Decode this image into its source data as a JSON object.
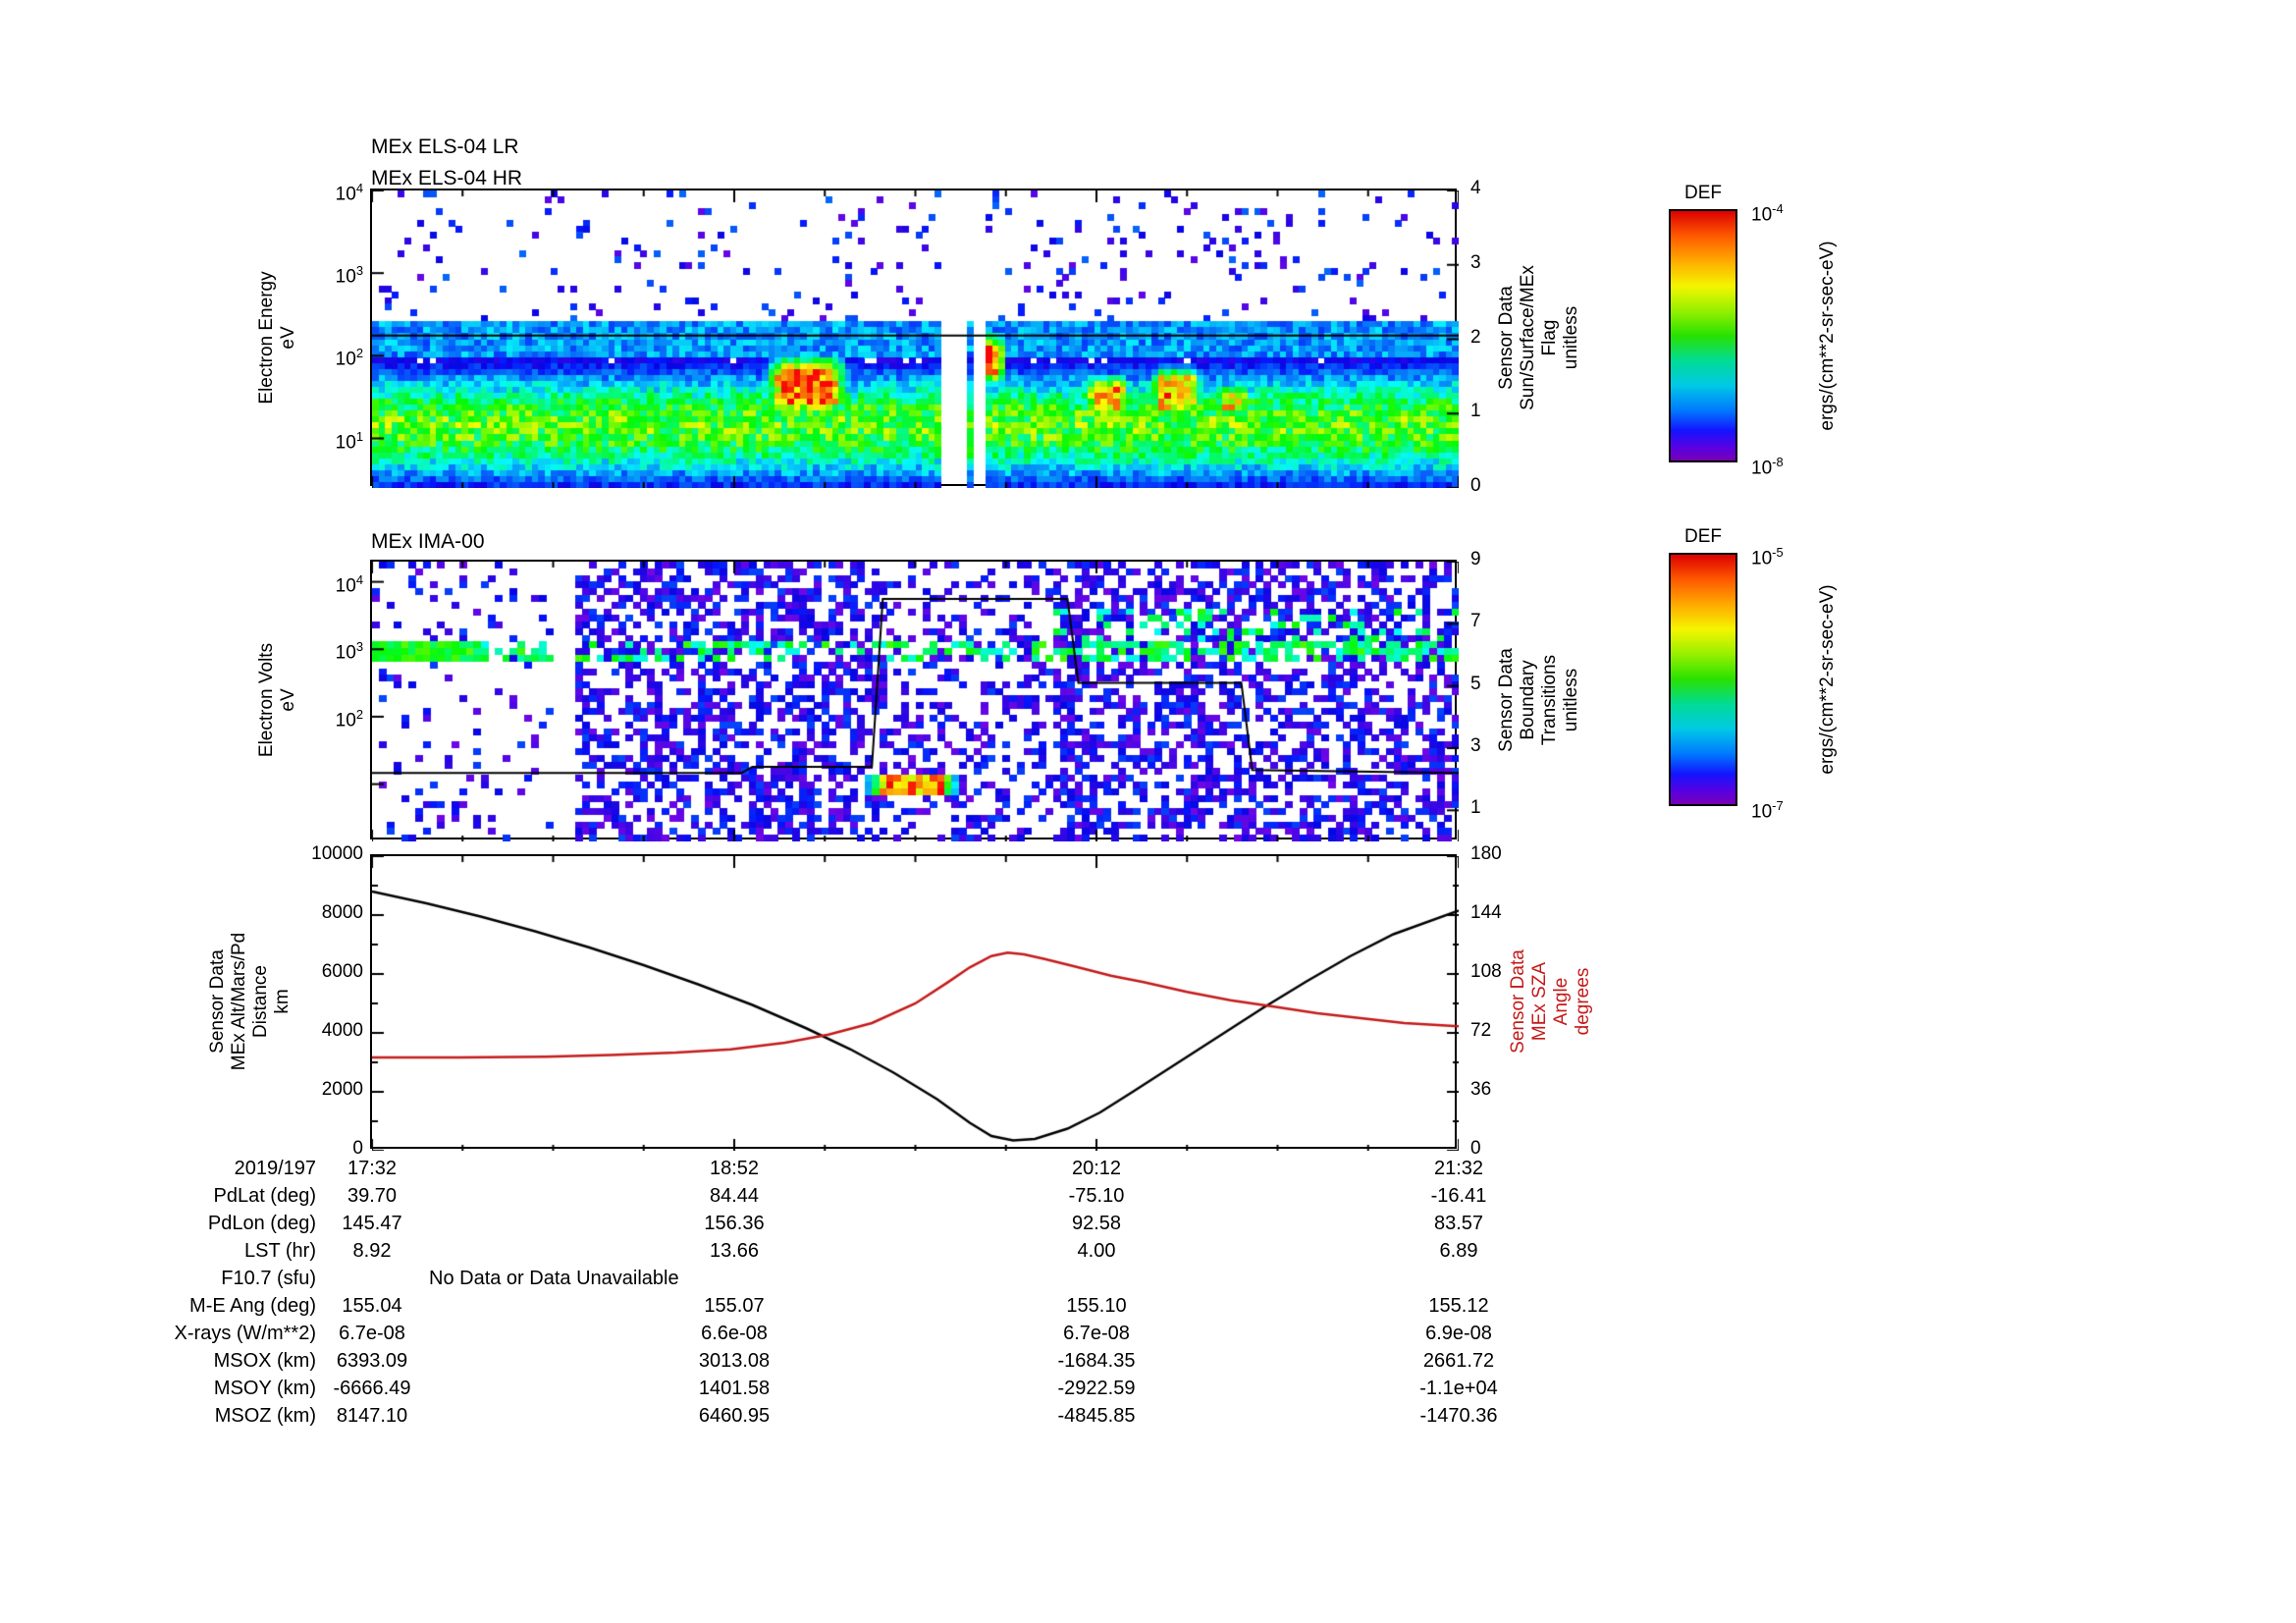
{
  "chart_data": [
    {
      "id": "els",
      "type": "heatmap",
      "titles": [
        "MEx ELS-04 LR",
        "MEx ELS-04 HR"
      ],
      "ylabel_lines": [
        "Electron Energy",
        "eV"
      ],
      "y_scale": "log",
      "y_log_range": [
        0.4,
        4.0
      ],
      "y_ticks": [
        {
          "base": "10",
          "exp": "4"
        },
        {
          "base": "10",
          "exp": "3"
        },
        {
          "base": "10",
          "exp": "2"
        },
        {
          "base": "10",
          "exp": "1"
        }
      ],
      "x_range": [
        "17:32",
        "21:32"
      ],
      "right_axis": {
        "label_lines": [
          "Sensor Data",
          "Sun/Surface/MEx",
          "Flag",
          "unitless"
        ],
        "range": [
          0,
          4
        ],
        "ticks": [
          "4",
          "3",
          "2",
          "1",
          "0"
        ]
      },
      "flag_line": [
        [
          0,
          2.05
        ],
        [
          1,
          2.05
        ]
      ],
      "features": {
        "band": {
          "center": 1.15,
          "sigma": 0.45,
          "peak": 0.62
        },
        "upper_band": {
          "log0": 2.0,
          "log1": 2.4,
          "v": 0.27
        },
        "blobs": [
          {
            "x0": 0.355,
            "x1": 0.445,
            "log0": 1.15,
            "log1": 2.1,
            "v": 0.97
          },
          {
            "x0": 0.559,
            "x1": 0.584,
            "log0": 1.55,
            "log1": 2.35,
            "v": 0.95
          },
          {
            "x0": 0.652,
            "x1": 0.702,
            "log0": 1.1,
            "log1": 1.85,
            "v": 0.86
          },
          {
            "x0": 0.712,
            "x1": 0.768,
            "log0": 1.15,
            "log1": 1.95,
            "v": 0.9
          },
          {
            "x0": 0.775,
            "x1": 0.81,
            "log0": 1.2,
            "log1": 1.7,
            "v": 0.8
          }
        ],
        "gaps": [
          [
            0.521,
            0.547
          ],
          [
            0.5555,
            0.5655
          ]
        ]
      },
      "colorbar": {
        "title": "DEF",
        "top_tick": {
          "base": "10",
          "exp": "-4"
        },
        "bottom_tick": {
          "base": "10",
          "exp": "-8"
        },
        "units": "ergs/(cm**2-sr-sec-eV)"
      }
    },
    {
      "id": "ima",
      "type": "heatmap",
      "titles": [
        "MEx IMA-00"
      ],
      "ylabel_lines": [
        "Electron Volts",
        "eV"
      ],
      "y_scale": "log",
      "y_log_range": [
        0.15,
        4.3
      ],
      "y_ticks": [
        {
          "base": "10",
          "exp": "4"
        },
        {
          "base": "10",
          "exp": "3"
        },
        {
          "base": "10",
          "exp": "2"
        }
      ],
      "x_range": [
        "17:32",
        "21:32"
      ],
      "right_axis": {
        "label_lines": [
          "Sensor Data",
          "Boundary",
          "Transitions",
          "unitless"
        ],
        "range": [
          0,
          9
        ],
        "ticks": [
          "9",
          "7",
          "5",
          "3",
          "1"
        ]
      },
      "boundary_line": [
        [
          0,
          2.2
        ],
        [
          0.34,
          2.2
        ],
        [
          0.35,
          2.4
        ],
        [
          0.46,
          2.4
        ],
        [
          0.47,
          7.8
        ],
        [
          0.64,
          7.8
        ],
        [
          0.65,
          5.1
        ],
        [
          0.8,
          5.1
        ],
        [
          0.81,
          2.3
        ],
        [
          1.0,
          2.2
        ]
      ],
      "features": {
        "band_log": 3.0,
        "red_streak": {
          "x0": 0.45,
          "x1": 0.545,
          "log0": 0.85,
          "log1": 1.15,
          "v": 0.93
        },
        "sparse_regions": [
          [
            0.0,
            0.168
          ],
          [
            0.47,
            0.63
          ]
        ],
        "gaps": [
          [
            0.168,
            0.185
          ]
        ]
      },
      "colorbar": {
        "title": "DEF",
        "top_tick": {
          "base": "10",
          "exp": "-5"
        },
        "bottom_tick": {
          "base": "10",
          "exp": "-7"
        },
        "units": "ergs/(cm**2-sr-sec-eV)"
      }
    },
    {
      "id": "lines",
      "type": "line",
      "left_axis": {
        "label_lines": [
          "Sensor Data",
          "MEx Alt/Mars/Pd",
          "Distance",
          "km"
        ],
        "range": [
          0,
          10000
        ],
        "ticks": [
          "10000",
          "8000",
          "6000",
          "4000",
          "2000",
          "0"
        ]
      },
      "right_axis": {
        "label_lines": [
          "Sensor Data",
          "MEx SZA",
          "Angle",
          "degrees"
        ],
        "range": [
          0,
          180
        ],
        "ticks": [
          "180",
          "144",
          "108",
          "72",
          "36",
          "0"
        ],
        "color": "#c41a1a"
      },
      "x_ticks": [
        "17:32",
        "18:52",
        "20:12",
        "21:32"
      ],
      "series": [
        {
          "name": "MEx Alt/Mars/Pd Distance km",
          "axis": "left",
          "color": "#000000",
          "points": [
            [
              0,
              8800
            ],
            [
              0.05,
              8400
            ],
            [
              0.1,
              7950
            ],
            [
              0.15,
              7450
            ],
            [
              0.2,
              6900
            ],
            [
              0.25,
              6300
            ],
            [
              0.3,
              5650
            ],
            [
              0.35,
              4950
            ],
            [
              0.4,
              4150
            ],
            [
              0.44,
              3450
            ],
            [
              0.48,
              2650
            ],
            [
              0.52,
              1750
            ],
            [
              0.55,
              950
            ],
            [
              0.57,
              500
            ],
            [
              0.59,
              350
            ],
            [
              0.61,
              400
            ],
            [
              0.64,
              750
            ],
            [
              0.67,
              1300
            ],
            [
              0.7,
              2000
            ],
            [
              0.74,
              2950
            ],
            [
              0.78,
              3900
            ],
            [
              0.82,
              4850
            ],
            [
              0.86,
              5750
            ],
            [
              0.9,
              6600
            ],
            [
              0.94,
              7350
            ],
            [
              1.0,
              8150
            ]
          ]
        },
        {
          "name": "MEx SZA Angle degrees",
          "axis": "right",
          "color": "#c41a1a",
          "points": [
            [
              0,
              57
            ],
            [
              0.08,
              57
            ],
            [
              0.16,
              57.5
            ],
            [
              0.22,
              58.5
            ],
            [
              0.28,
              60
            ],
            [
              0.33,
              62
            ],
            [
              0.38,
              66
            ],
            [
              0.42,
              71
            ],
            [
              0.46,
              78
            ],
            [
              0.5,
              90
            ],
            [
              0.53,
              103
            ],
            [
              0.55,
              112
            ],
            [
              0.57,
              119
            ],
            [
              0.585,
              121
            ],
            [
              0.6,
              120
            ],
            [
              0.62,
              117
            ],
            [
              0.65,
              112
            ],
            [
              0.68,
              107
            ],
            [
              0.71,
              103
            ],
            [
              0.75,
              97
            ],
            [
              0.79,
              92
            ],
            [
              0.83,
              88
            ],
            [
              0.87,
              84
            ],
            [
              0.91,
              81
            ],
            [
              0.95,
              78
            ],
            [
              1.0,
              76
            ]
          ]
        }
      ]
    }
  ],
  "table": {
    "rows": [
      {
        "label": "2019/197",
        "values": [
          "17:32",
          "18:52",
          "20:12",
          "21:32"
        ]
      },
      {
        "label": "PdLat (deg)",
        "values": [
          "39.70",
          "84.44",
          "-75.10",
          "-16.41"
        ]
      },
      {
        "label": "PdLon (deg)",
        "values": [
          "145.47",
          "156.36",
          "92.58",
          "83.57"
        ]
      },
      {
        "label": "LST (hr)",
        "values": [
          "8.92",
          "13.66",
          "4.00",
          "6.89"
        ]
      },
      {
        "label": "F10.7 (sfu)",
        "values": [],
        "note": "No Data or Data Unavailable"
      },
      {
        "label": "M-E Ang (deg)",
        "values": [
          "155.04",
          "155.07",
          "155.10",
          "155.12"
        ]
      },
      {
        "label": "X-rays (W/m**2)",
        "values": [
          "6.7e-08",
          "6.6e-08",
          "6.7e-08",
          "6.9e-08"
        ]
      },
      {
        "label": "MSOX (km)",
        "values": [
          "6393.09",
          "3013.08",
          "-1684.35",
          "2661.72"
        ]
      },
      {
        "label": "MSOY (km)",
        "values": [
          "-6666.49",
          "1401.58",
          "-2922.59",
          "-1.1e+04"
        ]
      },
      {
        "label": "MSOZ (km)",
        "values": [
          "8147.10",
          "6460.95",
          "-4845.85",
          "-1470.36"
        ]
      }
    ]
  }
}
